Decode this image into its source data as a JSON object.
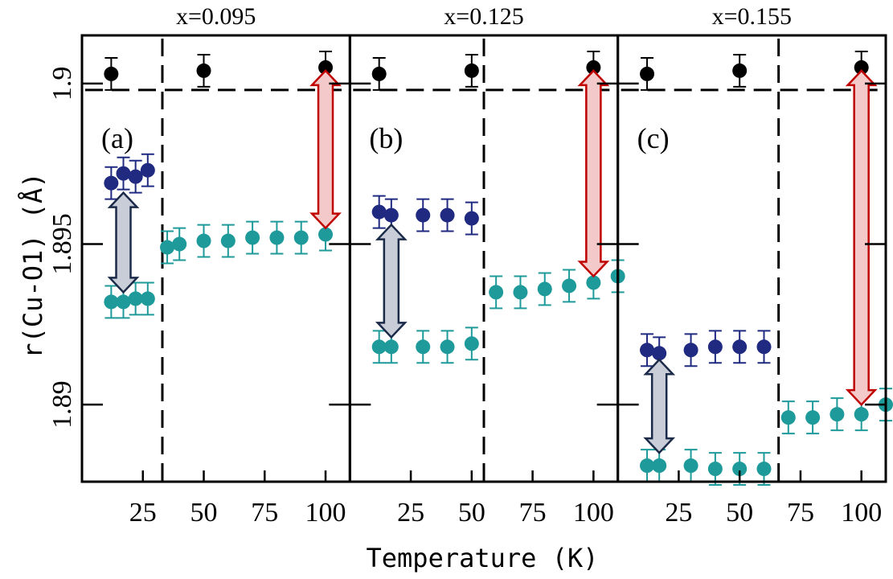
{
  "chart_data": {
    "type": "scatter",
    "xlabel": "Temperature (K)",
    "ylabel": "r(Cu-O1) (Å)",
    "xlim": [
      0,
      110
    ],
    "ylim": [
      1.8876,
      1.9015
    ],
    "y_ticks": [
      1.89,
      1.895,
      1.9
    ],
    "y_tick_labels": [
      "1.89",
      "1.895",
      "1.9"
    ],
    "x_ticks": [
      25,
      50,
      75,
      100
    ],
    "x_tick_labels": [
      "25",
      "50",
      "75",
      "100"
    ],
    "colors": {
      "upper": "#1f2a80",
      "lower": "#1f9a9a",
      "reference": "#000000",
      "red_arrow_fill": "#f4c9c9",
      "red_arrow_stroke": "#c00000",
      "gray_arrow_fill": "#c8cdd8",
      "gray_arrow_stroke": "#1a2a48"
    },
    "panels": [
      {
        "title": "x=0.095",
        "letter": "(a)",
        "transition_T": 33,
        "reference_line": 1.8998,
        "reference": {
          "x": [
            12,
            50,
            100
          ],
          "y": [
            1.9003,
            1.9004,
            1.9005
          ],
          "err": 0.0005
        },
        "upper": {
          "x": [
            12,
            17,
            22,
            27
          ],
          "y": [
            1.8969,
            1.8972,
            1.8971,
            1.8973
          ],
          "err": 0.0005
        },
        "lower": {
          "x": [
            12,
            17,
            22,
            27,
            35,
            40,
            50,
            60,
            70,
            80,
            90,
            100
          ],
          "y": [
            1.8932,
            1.8932,
            1.8933,
            1.8933,
            1.8949,
            1.895,
            1.8951,
            1.8951,
            1.8952,
            1.8952,
            1.8952,
            1.8953
          ],
          "err": 0.0005
        },
        "red_arrow": {
          "x": 100,
          "y_from": 1.9004,
          "y_to": 1.8955
        },
        "gray_arrow": {
          "x": 17,
          "y_from": 1.8966,
          "y_to": 1.8935
        }
      },
      {
        "title": "x=0.125",
        "letter": "(b)",
        "transition_T": 55,
        "reference_line": 1.8998,
        "reference": {
          "x": [
            12,
            50,
            100
          ],
          "y": [
            1.9003,
            1.9004,
            1.9005
          ],
          "err": 0.0005
        },
        "upper": {
          "x": [
            12,
            17,
            30,
            40,
            50
          ],
          "y": [
            1.896,
            1.8959,
            1.8959,
            1.8959,
            1.8958
          ],
          "err": 0.0005
        },
        "lower": {
          "x": [
            12,
            17,
            30,
            40,
            50,
            60,
            70,
            80,
            90,
            100,
            110
          ],
          "y": [
            1.8918,
            1.8918,
            1.8918,
            1.8918,
            1.8919,
            1.8935,
            1.8935,
            1.8936,
            1.8937,
            1.8938,
            1.894
          ],
          "err": 0.0005
        },
        "red_arrow": {
          "x": 100,
          "y_from": 1.9004,
          "y_to": 1.894
        },
        "gray_arrow": {
          "x": 17,
          "y_from": 1.8956,
          "y_to": 1.8921
        }
      },
      {
        "title": "x=0.155",
        "letter": "(c)",
        "transition_T": 66,
        "reference_line": 1.8998,
        "reference": {
          "x": [
            12,
            50,
            100
          ],
          "y": [
            1.9003,
            1.9004,
            1.9005
          ],
          "err": 0.0005
        },
        "upper": {
          "x": [
            12,
            17,
            30,
            40,
            50,
            60
          ],
          "y": [
            1.8917,
            1.8916,
            1.8917,
            1.8918,
            1.8918,
            1.8918
          ],
          "err": 0.0005
        },
        "lower": {
          "x": [
            12,
            17,
            30,
            40,
            50,
            60,
            70,
            80,
            90,
            100,
            110
          ],
          "y": [
            1.8881,
            1.8881,
            1.8881,
            1.888,
            1.888,
            1.888,
            1.8896,
            1.8896,
            1.8897,
            1.8897,
            1.89
          ],
          "err": 0.0005
        },
        "red_arrow": {
          "x": 100,
          "y_from": 1.9004,
          "y_to": 1.89
        },
        "gray_arrow": {
          "x": 17,
          "y_from": 1.8914,
          "y_to": 1.8885
        }
      }
    ]
  }
}
